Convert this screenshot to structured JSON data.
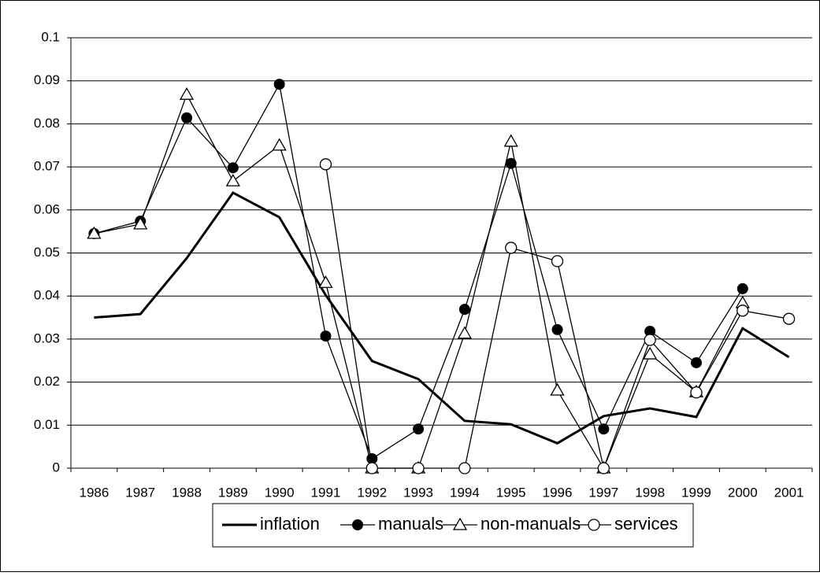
{
  "chart_data": {
    "type": "line",
    "categories": [
      "1986",
      "1987",
      "1988",
      "1989",
      "1990",
      "1991",
      "1992",
      "1993",
      "1994",
      "1995",
      "1996",
      "1997",
      "1998",
      "1999",
      "2000",
      "2001"
    ],
    "series": [
      {
        "name": "inflation",
        "color": "#000000",
        "marker": "none",
        "values": [
          0.035,
          0.0358,
          0.0488,
          0.064,
          0.0583,
          0.0402,
          0.0249,
          0.0207,
          0.011,
          0.0102,
          0.0058,
          0.0121,
          0.0139,
          0.0119,
          0.0325,
          0.0258
        ]
      },
      {
        "name": "manuals",
        "color": "#000000",
        "marker": "filled-circle",
        "values": [
          0.0545,
          0.0574,
          0.0814,
          0.0698,
          0.0892,
          0.0307,
          0.0022,
          0.0091,
          0.0369,
          0.0708,
          0.0322,
          0.0091,
          0.0318,
          0.0245,
          0.0417,
          null
        ]
      },
      {
        "name": "non-manuals",
        "color": "#000000",
        "marker": "triangle",
        "values": [
          0.0545,
          0.0567,
          0.0868,
          0.0667,
          0.075,
          0.0431,
          0,
          0,
          0.0313,
          0.0759,
          0.0181,
          0,
          0.0265,
          0.0177,
          0.0384,
          null
        ]
      },
      {
        "name": "services",
        "color": "#000000",
        "marker": "open-circle",
        "values": [
          null,
          null,
          null,
          null,
          null,
          0.0706,
          0,
          0,
          0,
          0.0512,
          0.0481,
          0,
          0.0298,
          0.0176,
          0.0366,
          0.0347
        ]
      }
    ],
    "ylim": [
      0,
      0.1
    ],
    "yticks": [
      0,
      0.01,
      0.02,
      0.03,
      0.04,
      0.05,
      0.06,
      0.07,
      0.08,
      0.09,
      0.1
    ],
    "grid": true,
    "legend": "bottom"
  }
}
